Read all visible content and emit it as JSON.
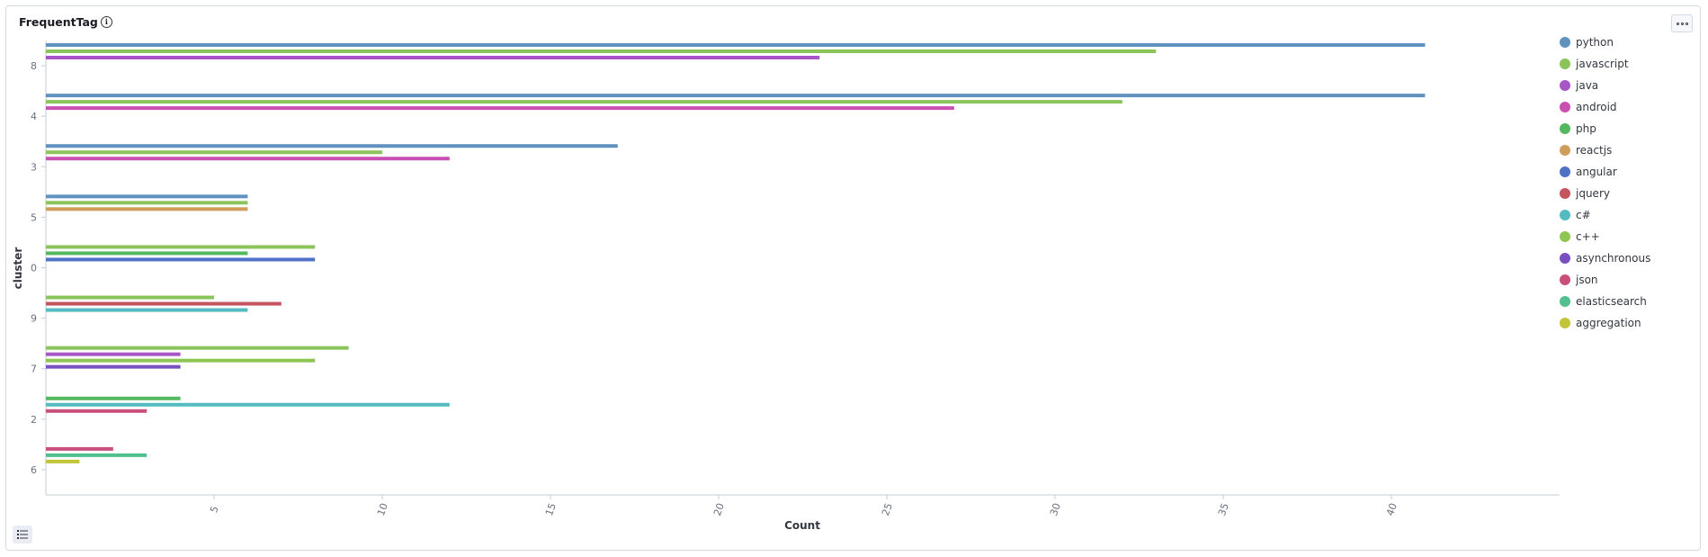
{
  "panel": {
    "title": "FrequentTag",
    "title_icon": "info-icon",
    "menu_icon": "options-menu-icon",
    "legend_toggle_icon": "legend-list-icon"
  },
  "chart_data": {
    "type": "bar",
    "orientation": "horizontal",
    "xlabel": "Count",
    "ylabel": "cluster",
    "xlim": [
      0,
      45
    ],
    "xticks": [
      5,
      10,
      15,
      20,
      25,
      30,
      35,
      40
    ],
    "grid": false,
    "legend_position": "right",
    "categories": [
      "8",
      "4",
      "3",
      "5",
      "0",
      "9",
      "7",
      "2",
      "6"
    ],
    "series": [
      {
        "name": "python",
        "color": "#6092c0",
        "values": {
          "8": 41,
          "4": 41,
          "3": 17,
          "5": 6
        }
      },
      {
        "name": "javascript",
        "color": "#8ac45a",
        "values": {
          "8": 33,
          "4": 32,
          "3": 10,
          "5": 6,
          "0": 8,
          "9": 5,
          "7": 9
        }
      },
      {
        "name": "java",
        "color": "#a855c8",
        "values": {
          "8": 23,
          "7": 4
        }
      },
      {
        "name": "android",
        "color": "#c94fb2",
        "values": {
          "4": 27,
          "3": 12
        }
      },
      {
        "name": "php",
        "color": "#54b85e",
        "values": {
          "0": 6,
          "2": 4
        }
      },
      {
        "name": "reactjs",
        "color": "#d09c5a",
        "values": {
          "5": 6
        }
      },
      {
        "name": "angular",
        "color": "#4f72c7",
        "values": {
          "0": 8
        }
      },
      {
        "name": "jquery",
        "color": "#c4555e",
        "values": {
          "9": 7
        }
      },
      {
        "name": "c#",
        "color": "#54bcc1",
        "values": {
          "9": 6,
          "2": 12
        }
      },
      {
        "name": "c++",
        "color": "#8ec653",
        "values": {
          "7": 8
        }
      },
      {
        "name": "asynchronous",
        "color": "#7a4fc2",
        "values": {
          "7": 4
        }
      },
      {
        "name": "json",
        "color": "#c94f7c",
        "values": {
          "2": 3,
          "6": 2
        }
      },
      {
        "name": "elasticsearch",
        "color": "#4fc08e",
        "values": {
          "6": 3
        }
      },
      {
        "name": "aggregation",
        "color": "#c2c43a",
        "values": {
          "6": 1
        }
      }
    ]
  }
}
